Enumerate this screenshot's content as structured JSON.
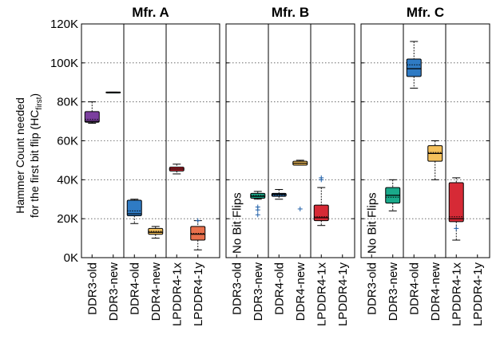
{
  "chart_data": {
    "type": "box",
    "y_axis": {
      "label_line1": "Hammer Count needed",
      "label_line2_prefix": "for the first bit flip (HC",
      "label_line2_sub": "first",
      "label_line2_suffix": ")",
      "ylim": [
        0,
        120000
      ],
      "ticks": [
        0,
        20000,
        40000,
        60000,
        80000,
        100000,
        120000
      ],
      "tick_labels": [
        "0K",
        "20K",
        "40K",
        "60K",
        "80K",
        "100K",
        "120K"
      ],
      "grid": "dotted"
    },
    "categories": [
      "DDR3-old",
      "DDR3-new",
      "DDR4-old",
      "DDR4-new",
      "LPDDR4-1x",
      "LPDDR4-1y"
    ],
    "colors": {
      "DDR3-old": "#7b3f9e",
      "DDR3-new": "#1aa98a",
      "DDR4-old": "#2f7bc4",
      "DDR4-new": "#f5c15c",
      "LPDDR4-1x": "#d62a36",
      "LPDDR4-1y": "#e8704c"
    },
    "panels": [
      {
        "title": "Mfr. A",
        "no_flip_label": "",
        "boxes": [
          {
            "category": "DDR3-old",
            "min": 69000,
            "q1": 69500,
            "median": 70000,
            "q3": 75000,
            "max": 80000,
            "mean": 71000,
            "outliers": []
          },
          {
            "category": "DDR3-new",
            "min": 85000,
            "q1": 85000,
            "median": 85000,
            "q3": 85000,
            "max": 85000,
            "mean": 85000,
            "outliers": []
          },
          {
            "category": "DDR4-old",
            "min": 17500,
            "q1": 21500,
            "median": 22500,
            "q3": 29500,
            "max": 30000,
            "mean": 24000,
            "outliers": []
          },
          {
            "category": "DDR4-new",
            "min": 10000,
            "q1": 12000,
            "median": 13000,
            "q3": 15000,
            "max": 16000,
            "mean": 13500,
            "outliers": []
          },
          {
            "category": "LPDDR4-1x",
            "min": 43000,
            "q1": 44500,
            "median": 45500,
            "q3": 46500,
            "max": 48000,
            "mean": 45500,
            "outliers": []
          },
          {
            "category": "LPDDR4-1y",
            "min": 4000,
            "q1": 9000,
            "median": 12000,
            "q3": 16000,
            "max": 19000,
            "mean": 12500,
            "outliers": [
              19000
            ]
          }
        ]
      },
      {
        "title": "Mfr. B",
        "no_flip_label": "No Bit Flips",
        "boxes": [
          {
            "category": "DDR3-old",
            "none": true
          },
          {
            "category": "DDR3-new",
            "min": 30000,
            "q1": 30500,
            "median": 31500,
            "q3": 33000,
            "max": 34000,
            "mean": 32000,
            "outliers": [
              22000,
              24500,
              26000
            ]
          },
          {
            "category": "DDR4-old",
            "min": 30000,
            "q1": 31500,
            "median": 32500,
            "q3": 33000,
            "max": 35000,
            "mean": 32000,
            "outliers": []
          },
          {
            "category": "DDR4-new",
            "min": 47500,
            "q1": 47500,
            "median": 48500,
            "q3": 49500,
            "max": 50000,
            "mean": 48500,
            "outliers": [
              25000
            ]
          },
          {
            "category": "LPDDR4-1x",
            "min": 16500,
            "q1": 19000,
            "median": 20500,
            "q3": 27000,
            "max": 36000,
            "mean": 21000,
            "outliers": [
              40000,
              41000
            ]
          },
          {
            "category": "LPDDR4-1y",
            "none": true
          }
        ]
      },
      {
        "title": "Mfr. C",
        "no_flip_label": "No Bit Flips",
        "boxes": [
          {
            "category": "DDR3-old",
            "none": true
          },
          {
            "category": "DDR3-new",
            "min": 24000,
            "q1": 28000,
            "median": 32000,
            "q3": 36000,
            "max": 40000,
            "mean": 31000,
            "outliers": []
          },
          {
            "category": "DDR4-old",
            "min": 87000,
            "q1": 93000,
            "median": 97000,
            "q3": 102000,
            "max": 111000,
            "mean": 99000,
            "outliers": []
          },
          {
            "category": "DDR4-new",
            "min": 40000,
            "q1": 49500,
            "median": 53500,
            "q3": 57500,
            "max": 60000,
            "mean": 54000,
            "outliers": []
          },
          {
            "category": "LPDDR4-1x",
            "min": 9000,
            "q1": 18500,
            "median": 20000,
            "q3": 38500,
            "max": 41000,
            "mean": 21000,
            "outliers": [
              15000
            ]
          },
          {
            "category": "LPDDR4-1y",
            "none": true
          }
        ]
      }
    ]
  }
}
